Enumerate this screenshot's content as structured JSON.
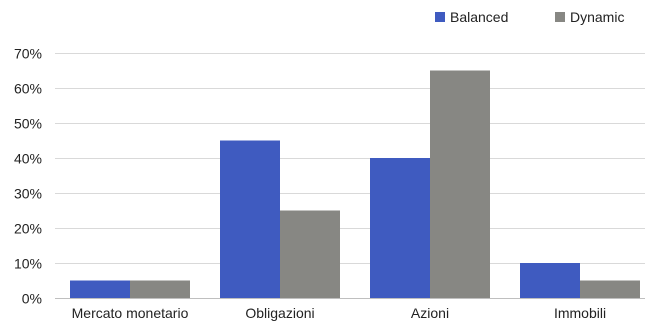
{
  "chart_data": {
    "type": "bar",
    "categories": [
      "Mercato monetario",
      "Obligazioni",
      "Azioni",
      "Immobili"
    ],
    "series": [
      {
        "name": "Balanced",
        "values": [
          5,
          45,
          40,
          10
        ],
        "color": "#3f5bc0"
      },
      {
        "name": "Dynamic",
        "values": [
          5,
          25,
          65,
          5
        ],
        "color": "#878783"
      }
    ],
    "ylim": [
      0,
      70
    ],
    "ytick_labels": [
      "0%",
      "10%",
      "20%",
      "30%",
      "40%",
      "50%",
      "60%",
      "70%"
    ],
    "grid": true,
    "legend_position": "top-right"
  }
}
